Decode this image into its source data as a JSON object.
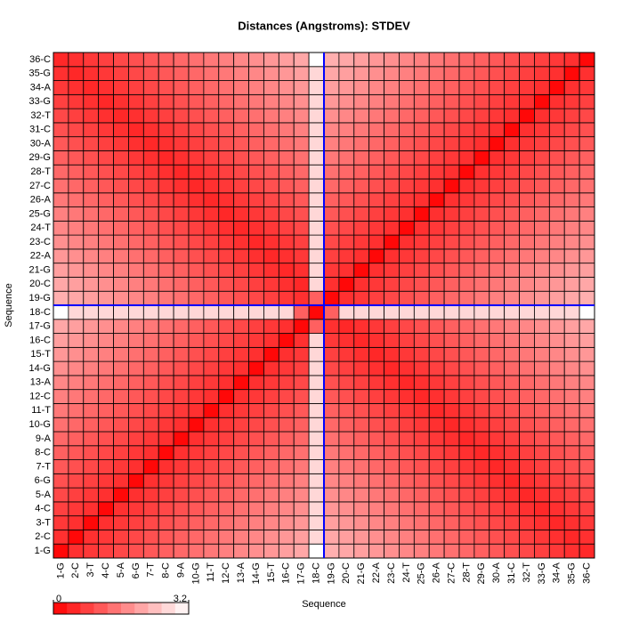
{
  "chart_data": {
    "type": "heatmap",
    "title": "Distances (Angstroms):  STDEV",
    "xlabel": "Sequence",
    "ylabel": "Sequence",
    "x_categories": [
      "1-G",
      "2-C",
      "3-T",
      "4-C",
      "5-A",
      "6-G",
      "7-T",
      "8-C",
      "9-A",
      "10-G",
      "11-T",
      "12-C",
      "13-A",
      "14-G",
      "15-T",
      "16-C",
      "17-G",
      "18-C",
      "19-G",
      "20-C",
      "21-G",
      "22-A",
      "23-C",
      "24-T",
      "25-G",
      "26-A",
      "27-C",
      "28-T",
      "29-G",
      "30-A",
      "31-C",
      "32-T",
      "33-G",
      "34-A",
      "35-G",
      "36-C"
    ],
    "y_categories": [
      "1-G",
      "2-C",
      "3-T",
      "4-C",
      "5-A",
      "6-G",
      "7-T",
      "8-C",
      "9-A",
      "10-G",
      "11-T",
      "12-C",
      "13-A",
      "14-G",
      "15-T",
      "16-C",
      "17-G",
      "18-C",
      "19-G",
      "20-C",
      "21-G",
      "22-A",
      "23-C",
      "24-T",
      "25-G",
      "26-A",
      "27-C",
      "28-T",
      "29-G",
      "30-A",
      "31-C",
      "32-T",
      "33-G",
      "34-A",
      "35-G",
      "36-C"
    ],
    "zlim": [
      0,
      3.2
    ],
    "zticks": [
      0,
      3.2
    ],
    "low_color": "#ff0000",
    "high_color": "#ffffff",
    "highlight": "18-C",
    "highlight_color": "#0000ff",
    "values": [
      [
        0.1,
        0.6,
        0.7,
        0.8,
        0.9,
        1,
        1.1,
        1.2,
        1.3,
        1.4,
        1.5,
        1.6,
        1.7,
        1.8,
        1.9,
        2,
        2.1,
        3.2,
        2.2,
        2.1,
        2,
        1.9,
        1.8,
        1.7,
        1.6,
        1.5,
        1.4,
        1.3,
        1.2,
        1.1,
        1,
        0.9,
        0.8,
        0.7,
        0.6,
        0.5
      ],
      [
        0.6,
        0.1,
        0.6,
        0.7,
        0.8,
        0.9,
        1,
        1.1,
        1.2,
        1.3,
        1.4,
        1.5,
        1.6,
        1.7,
        1.8,
        1.9,
        2,
        2.7,
        2.1,
        2,
        1.9,
        1.8,
        1.7,
        1.6,
        1.5,
        1.4,
        1.3,
        1.2,
        1.1,
        1,
        0.9,
        0.8,
        0.7,
        0.6,
        0.5,
        0.6
      ],
      [
        0.7,
        0.6,
        0.1,
        0.6,
        0.7,
        0.8,
        0.9,
        1,
        1.1,
        1.2,
        1.3,
        1.4,
        1.5,
        1.6,
        1.7,
        1.8,
        1.9,
        2.7,
        2,
        1.9,
        1.8,
        1.7,
        1.6,
        1.5,
        1.4,
        1.3,
        1.2,
        1.1,
        1,
        0.9,
        0.8,
        0.7,
        0.6,
        0.5,
        0.6,
        0.7
      ],
      [
        0.8,
        0.7,
        0.6,
        0.1,
        0.6,
        0.7,
        0.8,
        0.9,
        1,
        1.1,
        1.2,
        1.3,
        1.4,
        1.5,
        1.6,
        1.7,
        1.8,
        2.7,
        1.9,
        1.8,
        1.7,
        1.6,
        1.5,
        1.4,
        1.3,
        1.2,
        1.1,
        1,
        0.9,
        0.8,
        0.7,
        0.6,
        0.5,
        0.6,
        0.7,
        0.8
      ],
      [
        0.9,
        0.8,
        0.7,
        0.6,
        0.1,
        0.6,
        0.7,
        0.8,
        0.9,
        1,
        1.1,
        1.2,
        1.3,
        1.4,
        1.5,
        1.6,
        1.7,
        2.7,
        1.8,
        1.7,
        1.6,
        1.5,
        1.4,
        1.3,
        1.2,
        1.1,
        1,
        0.9,
        0.8,
        0.7,
        0.6,
        0.5,
        0.6,
        0.7,
        0.8,
        0.9
      ],
      [
        1,
        0.9,
        0.8,
        0.7,
        0.6,
        0.1,
        0.6,
        0.7,
        0.8,
        0.9,
        1,
        1.1,
        1.2,
        1.3,
        1.4,
        1.5,
        1.6,
        2.7,
        1.7,
        1.6,
        1.5,
        1.4,
        1.3,
        1.2,
        1.1,
        1,
        0.9,
        0.8,
        0.7,
        0.6,
        0.5,
        0.6,
        0.7,
        0.8,
        0.9,
        1
      ],
      [
        1.1,
        1,
        0.9,
        0.8,
        0.7,
        0.6,
        0.1,
        0.6,
        0.7,
        0.8,
        0.9,
        1,
        1.1,
        1.2,
        1.3,
        1.4,
        1.5,
        2.7,
        1.6,
        1.5,
        1.4,
        1.3,
        1.2,
        1.1,
        1,
        0.9,
        0.8,
        0.7,
        0.6,
        0.5,
        0.6,
        0.7,
        0.8,
        0.9,
        1,
        1.1
      ],
      [
        1.2,
        1.1,
        1,
        0.9,
        0.8,
        0.7,
        0.6,
        0.1,
        0.6,
        0.7,
        0.8,
        0.9,
        1,
        1.1,
        1.2,
        1.3,
        1.4,
        2.7,
        1.5,
        1.4,
        1.3,
        1.2,
        1.1,
        1,
        0.9,
        0.8,
        0.7,
        0.6,
        0.5,
        0.6,
        0.7,
        0.8,
        0.9,
        1,
        1.1,
        1.2
      ],
      [
        1.3,
        1.2,
        1.1,
        1,
        0.9,
        0.8,
        0.7,
        0.6,
        0.1,
        0.6,
        0.7,
        0.8,
        0.9,
        1,
        1.1,
        1.2,
        1.3,
        2.7,
        1.4,
        1.3,
        1.2,
        1.1,
        1,
        0.9,
        0.8,
        0.7,
        0.6,
        0.5,
        0.6,
        0.7,
        0.8,
        0.9,
        1,
        1.1,
        1.2,
        1.3
      ],
      [
        1.4,
        1.3,
        1.2,
        1.1,
        1,
        0.9,
        0.8,
        0.7,
        0.6,
        0.1,
        0.6,
        0.7,
        0.8,
        0.9,
        1,
        1.1,
        1.2,
        2.7,
        1.3,
        1.2,
        1.1,
        1,
        0.9,
        0.8,
        0.7,
        0.6,
        0.5,
        0.6,
        0.7,
        0.8,
        0.9,
        1,
        1.1,
        1.2,
        1.3,
        1.4
      ],
      [
        1.5,
        1.4,
        1.3,
        1.2,
        1.1,
        1,
        0.9,
        0.8,
        0.7,
        0.6,
        0.1,
        0.6,
        0.7,
        0.8,
        0.9,
        1,
        1.1,
        2.7,
        1.2,
        1.1,
        1,
        0.9,
        0.8,
        0.7,
        0.6,
        0.5,
        0.6,
        0.7,
        0.8,
        0.9,
        1,
        1.1,
        1.2,
        1.3,
        1.4,
        1.5
      ],
      [
        1.6,
        1.5,
        1.4,
        1.3,
        1.2,
        1.1,
        1,
        0.9,
        0.8,
        0.7,
        0.6,
        0.1,
        0.6,
        0.7,
        0.8,
        0.9,
        1,
        2.7,
        1.1,
        1,
        0.9,
        0.8,
        0.7,
        0.6,
        0.5,
        0.6,
        0.7,
        0.8,
        0.9,
        1,
        1.1,
        1.2,
        1.3,
        1.4,
        1.5,
        1.6
      ],
      [
        1.7,
        1.6,
        1.5,
        1.4,
        1.3,
        1.2,
        1.1,
        1,
        0.9,
        0.8,
        0.7,
        0.6,
        0.1,
        0.6,
        0.7,
        0.8,
        0.9,
        2.7,
        1,
        0.9,
        0.8,
        0.7,
        0.6,
        0.5,
        0.6,
        0.7,
        0.8,
        0.9,
        1,
        1.1,
        1.2,
        1.3,
        1.4,
        1.5,
        1.6,
        1.7
      ],
      [
        1.8,
        1.7,
        1.6,
        1.5,
        1.4,
        1.3,
        1.2,
        1.1,
        1,
        0.9,
        0.8,
        0.7,
        0.6,
        0.1,
        0.6,
        0.7,
        0.8,
        2.7,
        0.9,
        0.8,
        0.7,
        0.6,
        0.5,
        0.6,
        0.7,
        0.8,
        0.9,
        1,
        1.1,
        1.2,
        1.3,
        1.4,
        1.5,
        1.6,
        1.7,
        1.8
      ],
      [
        1.9,
        1.8,
        1.7,
        1.6,
        1.5,
        1.4,
        1.3,
        1.2,
        1.1,
        1,
        0.9,
        0.8,
        0.7,
        0.6,
        0.1,
        0.6,
        0.7,
        2.7,
        0.8,
        0.7,
        0.6,
        0.5,
        0.6,
        0.7,
        0.8,
        0.9,
        1,
        1.1,
        1.2,
        1.3,
        1.4,
        1.5,
        1.6,
        1.7,
        1.8,
        1.9
      ],
      [
        2,
        1.9,
        1.8,
        1.7,
        1.6,
        1.5,
        1.4,
        1.3,
        1.2,
        1.1,
        1,
        0.9,
        0.8,
        0.7,
        0.6,
        0.1,
        0.6,
        2.7,
        0.7,
        0.6,
        0.5,
        0.6,
        0.7,
        0.8,
        0.9,
        1,
        1.1,
        1.2,
        1.3,
        1.4,
        1.5,
        1.6,
        1.7,
        1.8,
        1.9,
        2
      ],
      [
        2.1,
        2,
        1.9,
        1.8,
        1.7,
        1.6,
        1.5,
        1.4,
        1.3,
        1.2,
        1.1,
        1,
        0.9,
        0.8,
        0.7,
        0.6,
        0.1,
        1.2,
        0.6,
        0.5,
        0.6,
        0.7,
        0.8,
        0.9,
        1,
        1.1,
        1.2,
        1.3,
        1.4,
        1.5,
        1.6,
        1.7,
        1.8,
        1.9,
        2,
        2.1
      ],
      [
        3.2,
        2.7,
        2.7,
        2.7,
        2.7,
        2.7,
        2.7,
        2.7,
        2.7,
        2.7,
        2.7,
        2.7,
        2.7,
        2.7,
        2.7,
        2.7,
        1.2,
        0.1,
        1.2,
        2.7,
        2.7,
        2.7,
        2.7,
        2.7,
        2.7,
        2.7,
        2.7,
        2.7,
        2.7,
        2.7,
        2.7,
        2.7,
        2.7,
        2.7,
        2.7,
        3.2
      ],
      [
        2.2,
        2.1,
        2,
        1.9,
        1.8,
        1.7,
        1.6,
        1.5,
        1.4,
        1.3,
        1.2,
        1.1,
        1,
        0.9,
        0.8,
        0.7,
        0.6,
        1.2,
        0.1,
        0.6,
        0.7,
        0.8,
        0.9,
        1,
        1.1,
        1.2,
        1.3,
        1.4,
        1.5,
        1.6,
        1.7,
        1.8,
        1.9,
        2,
        2.1,
        2.2
      ],
      [
        2.1,
        2,
        1.9,
        1.8,
        1.7,
        1.6,
        1.5,
        1.4,
        1.3,
        1.2,
        1.1,
        1,
        0.9,
        0.8,
        0.7,
        0.6,
        0.5,
        2.7,
        0.6,
        0.1,
        0.6,
        0.7,
        0.8,
        0.9,
        1,
        1.1,
        1.2,
        1.3,
        1.4,
        1.5,
        1.6,
        1.7,
        1.8,
        1.9,
        2,
        2.1
      ],
      [
        2,
        1.9,
        1.8,
        1.7,
        1.6,
        1.5,
        1.4,
        1.3,
        1.2,
        1.1,
        1,
        0.9,
        0.8,
        0.7,
        0.6,
        0.5,
        0.6,
        2.7,
        0.7,
        0.6,
        0.1,
        0.6,
        0.7,
        0.8,
        0.9,
        1,
        1.1,
        1.2,
        1.3,
        1.4,
        1.5,
        1.6,
        1.7,
        1.8,
        1.9,
        2
      ],
      [
        1.9,
        1.8,
        1.7,
        1.6,
        1.5,
        1.4,
        1.3,
        1.2,
        1.1,
        1,
        0.9,
        0.8,
        0.7,
        0.6,
        0.5,
        0.6,
        0.7,
        2.7,
        0.8,
        0.7,
        0.6,
        0.1,
        0.6,
        0.7,
        0.8,
        0.9,
        1,
        1.1,
        1.2,
        1.3,
        1.4,
        1.5,
        1.6,
        1.7,
        1.8,
        1.9
      ],
      [
        1.8,
        1.7,
        1.6,
        1.5,
        1.4,
        1.3,
        1.2,
        1.1,
        1,
        0.9,
        0.8,
        0.7,
        0.6,
        0.5,
        0.6,
        0.7,
        0.8,
        2.7,
        0.9,
        0.8,
        0.7,
        0.6,
        0.1,
        0.6,
        0.7,
        0.8,
        0.9,
        1,
        1.1,
        1.2,
        1.3,
        1.4,
        1.5,
        1.6,
        1.7,
        1.8
      ],
      [
        1.7,
        1.6,
        1.5,
        1.4,
        1.3,
        1.2,
        1.1,
        1,
        0.9,
        0.8,
        0.7,
        0.6,
        0.5,
        0.6,
        0.7,
        0.8,
        0.9,
        2.7,
        1,
        0.9,
        0.8,
        0.7,
        0.6,
        0.1,
        0.6,
        0.7,
        0.8,
        0.9,
        1,
        1.1,
        1.2,
        1.3,
        1.4,
        1.5,
        1.6,
        1.7
      ],
      [
        1.6,
        1.5,
        1.4,
        1.3,
        1.2,
        1.1,
        1,
        0.9,
        0.8,
        0.7,
        0.6,
        0.5,
        0.6,
        0.7,
        0.8,
        0.9,
        1,
        2.7,
        1.1,
        1,
        0.9,
        0.8,
        0.7,
        0.6,
        0.1,
        0.6,
        0.7,
        0.8,
        0.9,
        1,
        1.1,
        1.2,
        1.3,
        1.4,
        1.5,
        1.6
      ],
      [
        1.5,
        1.4,
        1.3,
        1.2,
        1.1,
        1,
        0.9,
        0.8,
        0.7,
        0.6,
        0.5,
        0.6,
        0.7,
        0.8,
        0.9,
        1,
        1.1,
        2.7,
        1.2,
        1.1,
        1,
        0.9,
        0.8,
        0.7,
        0.6,
        0.1,
        0.6,
        0.7,
        0.8,
        0.9,
        1,
        1.1,
        1.2,
        1.3,
        1.4,
        1.5
      ],
      [
        1.4,
        1.3,
        1.2,
        1.1,
        1,
        0.9,
        0.8,
        0.7,
        0.6,
        0.5,
        0.6,
        0.7,
        0.8,
        0.9,
        1,
        1.1,
        1.2,
        2.7,
        1.3,
        1.2,
        1.1,
        1,
        0.9,
        0.8,
        0.7,
        0.6,
        0.1,
        0.6,
        0.7,
        0.8,
        0.9,
        1,
        1.1,
        1.2,
        1.3,
        1.4
      ],
      [
        1.3,
        1.2,
        1.1,
        1,
        0.9,
        0.8,
        0.7,
        0.6,
        0.5,
        0.6,
        0.7,
        0.8,
        0.9,
        1,
        1.1,
        1.2,
        1.3,
        2.7,
        1.4,
        1.3,
        1.2,
        1.1,
        1,
        0.9,
        0.8,
        0.7,
        0.6,
        0.1,
        0.6,
        0.7,
        0.8,
        0.9,
        1,
        1.1,
        1.2,
        1.3
      ],
      [
        1.2,
        1.1,
        1,
        0.9,
        0.8,
        0.7,
        0.6,
        0.5,
        0.6,
        0.7,
        0.8,
        0.9,
        1,
        1.1,
        1.2,
        1.3,
        1.4,
        2.7,
        1.5,
        1.4,
        1.3,
        1.2,
        1.1,
        1,
        0.9,
        0.8,
        0.7,
        0.6,
        0.1,
        0.6,
        0.7,
        0.8,
        0.9,
        1,
        1.1,
        1.2
      ],
      [
        1.1,
        1,
        0.9,
        0.8,
        0.7,
        0.6,
        0.5,
        0.6,
        0.7,
        0.8,
        0.9,
        1,
        1.1,
        1.2,
        1.3,
        1.4,
        1.5,
        2.7,
        1.6,
        1.5,
        1.4,
        1.3,
        1.2,
        1.1,
        1,
        0.9,
        0.8,
        0.7,
        0.6,
        0.1,
        0.6,
        0.7,
        0.8,
        0.9,
        1,
        1.1
      ],
      [
        1,
        0.9,
        0.8,
        0.7,
        0.6,
        0.5,
        0.6,
        0.7,
        0.8,
        0.9,
        1,
        1.1,
        1.2,
        1.3,
        1.4,
        1.5,
        1.6,
        2.7,
        1.7,
        1.6,
        1.5,
        1.4,
        1.3,
        1.2,
        1.1,
        1,
        0.9,
        0.8,
        0.7,
        0.6,
        0.1,
        0.6,
        0.7,
        0.8,
        0.9,
        1
      ],
      [
        0.9,
        0.8,
        0.7,
        0.6,
        0.5,
        0.6,
        0.7,
        0.8,
        0.9,
        1,
        1.1,
        1.2,
        1.3,
        1.4,
        1.5,
        1.6,
        1.7,
        2.7,
        1.8,
        1.7,
        1.6,
        1.5,
        1.4,
        1.3,
        1.2,
        1.1,
        1,
        0.9,
        0.8,
        0.7,
        0.6,
        0.1,
        0.6,
        0.7,
        0.8,
        0.9
      ],
      [
        0.8,
        0.7,
        0.6,
        0.5,
        0.6,
        0.7,
        0.8,
        0.9,
        1,
        1.1,
        1.2,
        1.3,
        1.4,
        1.5,
        1.6,
        1.7,
        1.8,
        2.7,
        1.9,
        1.8,
        1.7,
        1.6,
        1.5,
        1.4,
        1.3,
        1.2,
        1.1,
        1,
        0.9,
        0.8,
        0.7,
        0.6,
        0.1,
        0.6,
        0.7,
        0.8
      ],
      [
        0.7,
        0.6,
        0.5,
        0.6,
        0.7,
        0.8,
        0.9,
        1,
        1.1,
        1.2,
        1.3,
        1.4,
        1.5,
        1.6,
        1.7,
        1.8,
        1.9,
        2.7,
        2,
        1.9,
        1.8,
        1.7,
        1.6,
        1.5,
        1.4,
        1.3,
        1.2,
        1.1,
        1,
        0.9,
        0.8,
        0.7,
        0.6,
        0.1,
        0.6,
        0.7
      ],
      [
        0.6,
        0.5,
        0.6,
        0.7,
        0.8,
        0.9,
        1,
        1.1,
        1.2,
        1.3,
        1.4,
        1.5,
        1.6,
        1.7,
        1.8,
        1.9,
        2,
        2.7,
        2.1,
        2,
        1.9,
        1.8,
        1.7,
        1.6,
        1.5,
        1.4,
        1.3,
        1.2,
        1.1,
        1,
        0.9,
        0.8,
        0.7,
        0.6,
        0.1,
        0.6
      ],
      [
        0.5,
        0.6,
        0.7,
        0.8,
        0.9,
        1,
        1.1,
        1.2,
        1.3,
        1.4,
        1.5,
        1.6,
        1.7,
        1.8,
        1.9,
        2,
        2.1,
        3.2,
        2.2,
        2.1,
        2,
        1.9,
        1.8,
        1.7,
        1.6,
        1.5,
        1.4,
        1.3,
        1.2,
        1.1,
        1,
        0.9,
        0.8,
        0.7,
        0.6,
        0.1
      ]
    ]
  }
}
